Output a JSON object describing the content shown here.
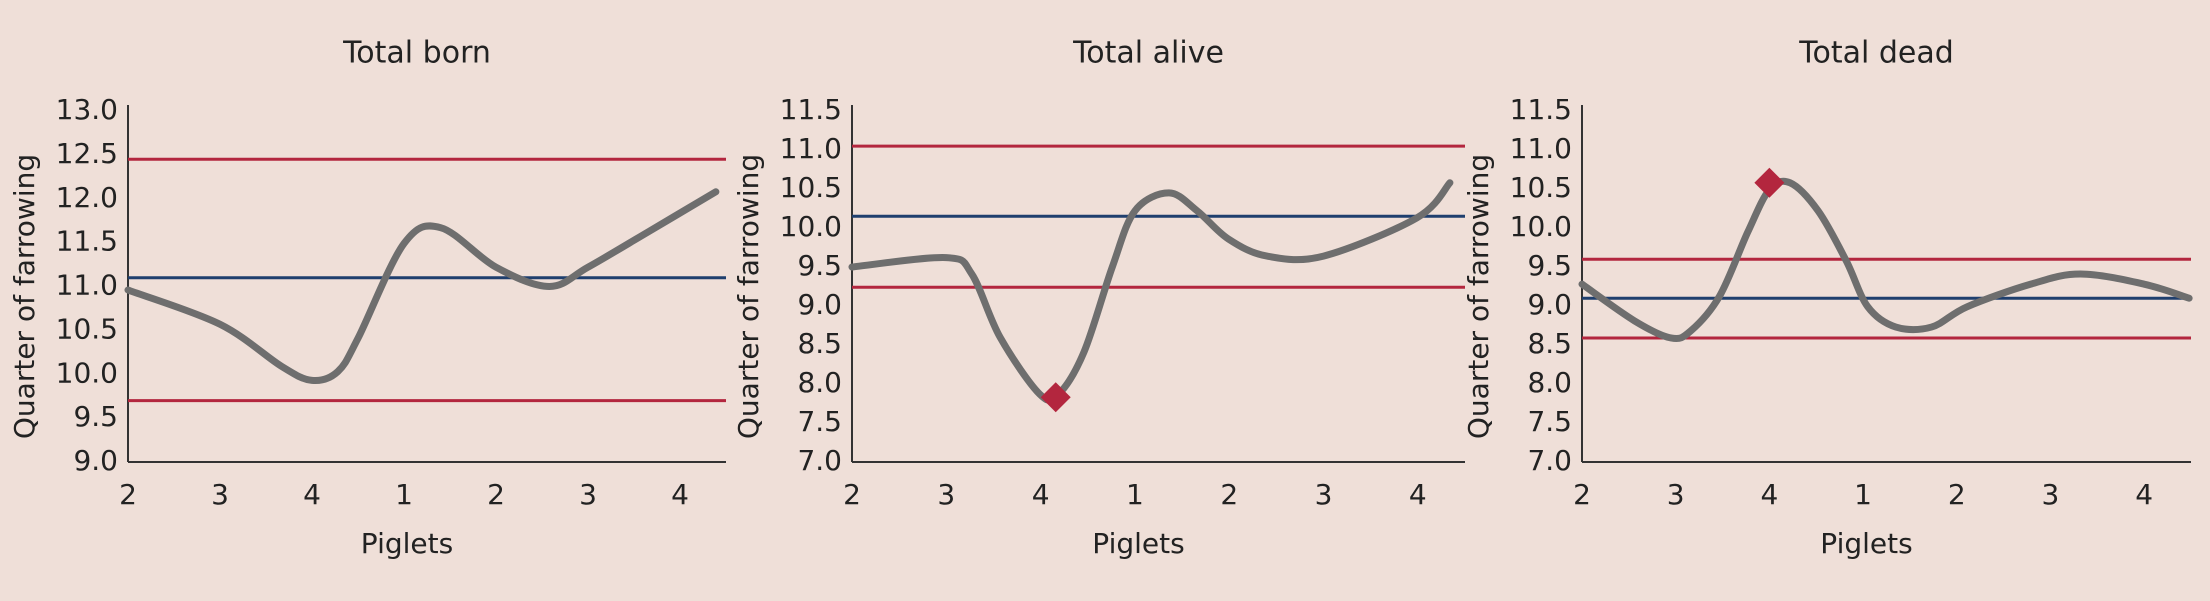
{
  "chart_data": [
    {
      "type": "line",
      "title": "Total born",
      "x_label": "Piglets",
      "y_label": "Quarter of farrowing",
      "xlim": [
        0,
        6.5
      ],
      "xticks": [
        {
          "value": 0,
          "label": "2"
        },
        {
          "value": 1,
          "label": "3"
        },
        {
          "value": 2,
          "label": "4"
        },
        {
          "value": 3,
          "label": "1"
        },
        {
          "value": 4,
          "label": "2"
        },
        {
          "value": 5,
          "label": "3"
        },
        {
          "value": 6,
          "label": "4"
        }
      ],
      "ylim": [
        9,
        13
      ],
      "yticks": [
        {
          "value": 9,
          "label": "9.0"
        },
        9.5,
        {
          "value": 10,
          "label": "10.0"
        },
        10.5,
        {
          "value": 11,
          "label": "11.0"
        },
        11.5,
        {
          "value": 12,
          "label": "12.0"
        },
        12.5,
        {
          "value": 13,
          "label": "13.0"
        }
      ],
      "series": [
        {
          "color": "#6e6e6e",
          "x": [
            0,
            1.0,
            1.67,
            2.0,
            2.28,
            2.5,
            3.0,
            3.4,
            4.0,
            4.58,
            5.0,
            5.65,
            6.39
          ],
          "values": [
            10.96,
            10.57,
            10.09,
            9.93,
            10.03,
            10.41,
            11.49,
            11.67,
            11.22,
            11.0,
            11.22,
            11.62,
            12.08
          ]
        }
      ],
      "reference_lines": [
        {
          "value": 12.45,
          "color": "#b3263e"
        },
        {
          "value": 11.1,
          "color": "#1f3f6e"
        },
        {
          "value": 9.7,
          "color": "#b3263e"
        }
      ],
      "markers": []
    },
    {
      "type": "line",
      "title": "Total alive",
      "x_label": "Piglets",
      "y_label": "Quarter of farrowing",
      "xlim": [
        0,
        6.5
      ],
      "xticks": [
        {
          "value": 0,
          "label": "2"
        },
        {
          "value": 1,
          "label": "3"
        },
        {
          "value": 2,
          "label": "4"
        },
        {
          "value": 3,
          "label": "1"
        },
        {
          "value": 4,
          "label": "2"
        },
        {
          "value": 5,
          "label": "3"
        },
        {
          "value": 6,
          "label": "4"
        }
      ],
      "ylim": [
        7,
        11.5
      ],
      "yticks": [
        {
          "value": 7,
          "label": "7.0"
        },
        7.5,
        {
          "value": 8,
          "label": "8.0"
        },
        8.5,
        {
          "value": 9,
          "label": "9.0"
        },
        9.5,
        {
          "value": 10,
          "label": "10.0"
        },
        10.5,
        {
          "value": 11,
          "label": "11.0"
        },
        11.5
      ],
      "series": [
        {
          "color": "#6e6e6e",
          "x": [
            0,
            1.0,
            1.27,
            1.57,
            1.99,
            2.19,
            2.46,
            2.76,
            3.0,
            3.36,
            3.66,
            3.99,
            4.4,
            5.0,
            5.99,
            6.34
          ],
          "values": [
            9.5,
            9.62,
            9.41,
            8.6,
            7.87,
            7.87,
            8.41,
            9.5,
            10.22,
            10.45,
            10.22,
            9.86,
            9.64,
            9.64,
            10.13,
            10.58
          ]
        }
      ],
      "reference_lines": [
        {
          "value": 11.05,
          "color": "#b3263e"
        },
        {
          "value": 10.15,
          "color": "#1f3f6e"
        },
        {
          "value": 9.24,
          "color": "#b3263e"
        }
      ],
      "markers": [
        {
          "x": 2.16,
          "y": 7.83,
          "color": "#b3263e"
        }
      ]
    },
    {
      "type": "line",
      "title": "Total dead",
      "x_label": "Piglets",
      "y_label": "Quarter of farrowing",
      "xlim": [
        0,
        6.5
      ],
      "xticks": [
        {
          "value": 0,
          "label": "2"
        },
        {
          "value": 1,
          "label": "3"
        },
        {
          "value": 2,
          "label": "4"
        },
        {
          "value": 3,
          "label": "1"
        },
        {
          "value": 4,
          "label": "2"
        },
        {
          "value": 5,
          "label": "3"
        },
        {
          "value": 6,
          "label": "4"
        }
      ],
      "ylim": [
        7,
        11.5
      ],
      "yticks": [
        {
          "value": 7,
          "label": "7.0"
        },
        7.5,
        {
          "value": 8,
          "label": "8.0"
        },
        8.5,
        {
          "value": 9,
          "label": "9.0"
        },
        9.5,
        {
          "value": 10,
          "label": "10.0"
        },
        10.5,
        {
          "value": 11,
          "label": "11.0"
        },
        11.5
      ],
      "series": [
        {
          "color": "#6e6e6e",
          "x": [
            0,
            0.56,
            0.95,
            1.16,
            1.47,
            1.77,
            2.0,
            2.22,
            2.52,
            2.82,
            3.05,
            3.35,
            3.73,
            4.11,
            4.79,
            5.32,
            6.0,
            6.48
          ],
          "values": [
            9.28,
            8.81,
            8.59,
            8.68,
            9.13,
            9.95,
            10.49,
            10.58,
            10.22,
            9.58,
            8.99,
            8.73,
            8.73,
            8.99,
            9.28,
            9.41,
            9.28,
            9.1
          ]
        }
      ],
      "reference_lines": [
        {
          "value": 9.6,
          "color": "#b3263e"
        },
        {
          "value": 9.1,
          "color": "#1f3f6e"
        },
        {
          "value": 8.59,
          "color": "#b3263e"
        }
      ],
      "markers": [
        {
          "x": 2.0,
          "y": 10.58,
          "color": "#b3263e"
        }
      ]
    }
  ]
}
